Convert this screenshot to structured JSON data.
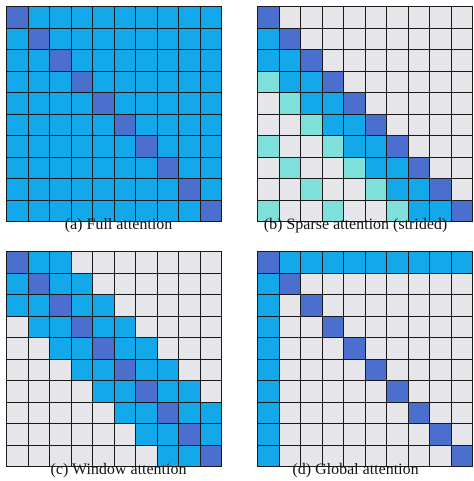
{
  "panels": [
    {
      "caption": "(a) Full attention"
    },
    {
      "caption": "(b) Sparse attention (strided)"
    },
    {
      "caption": "(c) Window attention"
    },
    {
      "caption": "(d) Global attention"
    }
  ],
  "colors": {
    "attended": "#12a8ea",
    "diagonal": "#4a6fcf",
    "empty": "#e6e6ea",
    "strided": "#7fe0db"
  }
}
